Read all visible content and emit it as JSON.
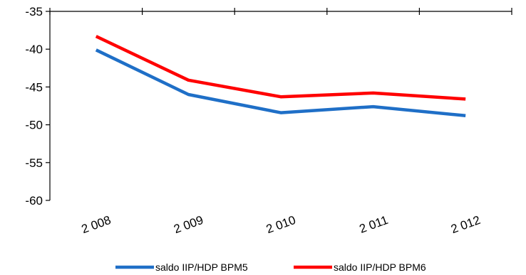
{
  "chart_data": {
    "type": "line",
    "categories": [
      "2 008",
      "2 009",
      "2 010",
      "2 011",
      "2 012"
    ],
    "ylim": [
      -60,
      -35
    ],
    "yticks": [
      -35,
      -40,
      -45,
      -50,
      -55,
      -60
    ],
    "series": [
      {
        "name": "saldo IIP/HDP BPM5",
        "color": "#1f6fc7",
        "values": [
          -40.1,
          -46.0,
          -48.4,
          -47.6,
          -48.8
        ]
      },
      {
        "name": "saldo IIP/HDP BPM6",
        "color": "#ff0000",
        "values": [
          -38.3,
          -44.1,
          -46.3,
          -45.8,
          -46.6
        ]
      }
    ],
    "grid": false,
    "legend": "bottom"
  }
}
